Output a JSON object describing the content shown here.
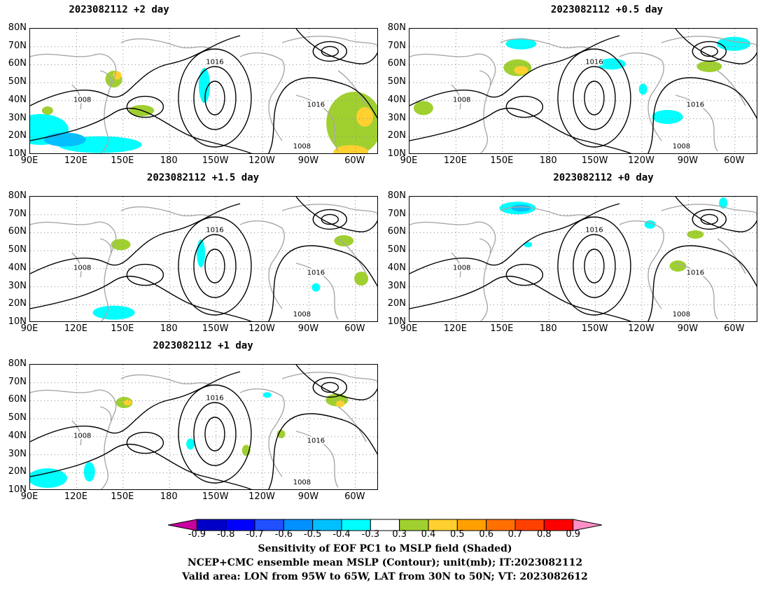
{
  "panels": [
    {
      "id": "p2",
      "title": "2023082112 +2 day"
    },
    {
      "id": "p05",
      "title": "2023082112 +0.5 day"
    },
    {
      "id": "p15",
      "title": "2023082112 +1.5 day"
    },
    {
      "id": "p0",
      "title": "2023082112 +0 day"
    },
    {
      "id": "p1",
      "title": "2023082112 +1 day"
    }
  ],
  "lat_labels": [
    "80N",
    "70N",
    "60N",
    "50N",
    "40N",
    "30N",
    "20N",
    "10N"
  ],
  "lon_labels": [
    "90E",
    "120E",
    "150E",
    "180",
    "150W",
    "120W",
    "90W",
    "60W"
  ],
  "contour_labels": [
    "1016",
    "1008",
    "1016",
    "1008"
  ],
  "colorbar": {
    "ticks": [
      "-0.9",
      "-0.8",
      "-0.7",
      "-0.6",
      "-0.5",
      "-0.4",
      "-0.3",
      "0.3",
      "0.4",
      "0.5",
      "0.6",
      "0.7",
      "0.8",
      "0.9"
    ],
    "colors": [
      "#c800a0",
      "#0000c8",
      "#0000ff",
      "#2050ff",
      "#0090ff",
      "#00c0ff",
      "#00ffff",
      "#ffffff",
      "#a0d030",
      "#ffd030",
      "#ffa000",
      "#ff7000",
      "#ff4000",
      "#ff0000",
      "#ff90c8"
    ]
  },
  "captions": [
    "Sensitivity of EOF PC1 to MSLP field (Shaded)",
    "NCEP+CMC ensemble mean MSLP (Contour); unit(mb); IT:2023082112",
    "Valid area: LON from 95W to 65W, LAT from 30N to 50N; VT: 2023082612"
  ]
}
